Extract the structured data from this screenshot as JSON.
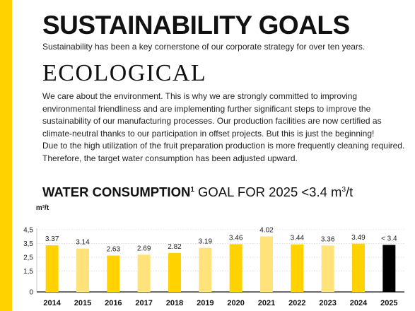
{
  "colors": {
    "accent": "#ffd200",
    "bar_regular": "#ffd200",
    "bar_light": "#ffe27a",
    "bar_goal": "#000000",
    "grid": "#cccccc"
  },
  "header": {
    "title": "SUSTAINABILITY GOALS",
    "subtitle": "Sustainability has been a key cornerstone of our corporate strategy for over ten years."
  },
  "section": {
    "title": "ECOLOGICAL",
    "paragraph_1": "We care about the environment. This is why we are strongly committed to improving environmental friendliness and are implementing further significant steps to improve the sustainability of our manufacturing processes. Our production facilities are now certified as climate-neutral thanks to our participation in offset projects. But this is just the beginning!",
    "paragraph_2": "Due to the high utilization of the fruit preparation production is more frequently cleaning required. Therefore, the target water consumption has been adjusted upward."
  },
  "chart_heading": {
    "bold": "WATER CONSUMPTION",
    "footnote": "1",
    "rest_before_sup": " GOAL FOR 2025 <3.4 m",
    "sup": "3",
    "rest_after_sup": "/t"
  },
  "chart_data": {
    "type": "bar",
    "ylabel": "m³/t",
    "ylim": [
      0,
      4.5
    ],
    "yticks": [
      "0",
      "1,5",
      "2,5",
      "3,5",
      "4,5"
    ],
    "ytick_values": [
      0,
      1.5,
      2.5,
      3.5,
      4.5
    ],
    "grid": true,
    "categories": [
      "2014",
      "2015",
      "2016",
      "2017",
      "2018",
      "2019",
      "2020",
      "2021",
      "2022",
      "2023",
      "2024",
      "2025"
    ],
    "values": [
      3.37,
      3.14,
      2.63,
      2.69,
      2.82,
      3.19,
      3.46,
      4.02,
      3.44,
      3.36,
      3.49,
      3.4
    ],
    "labels": [
      "3.37",
      "3.14",
      "2.63",
      "2.69",
      "2.82",
      "3.19",
      "3.46",
      "4.02",
      "3.44",
      "3.36",
      "3.49",
      "< 3.4"
    ],
    "bar_colors": [
      "#ffd200",
      "#ffe27a",
      "#ffd200",
      "#ffe27a",
      "#ffd200",
      "#ffe27a",
      "#ffd200",
      "#ffe27a",
      "#ffd200",
      "#ffe27a",
      "#ffd200",
      "#000000"
    ]
  }
}
